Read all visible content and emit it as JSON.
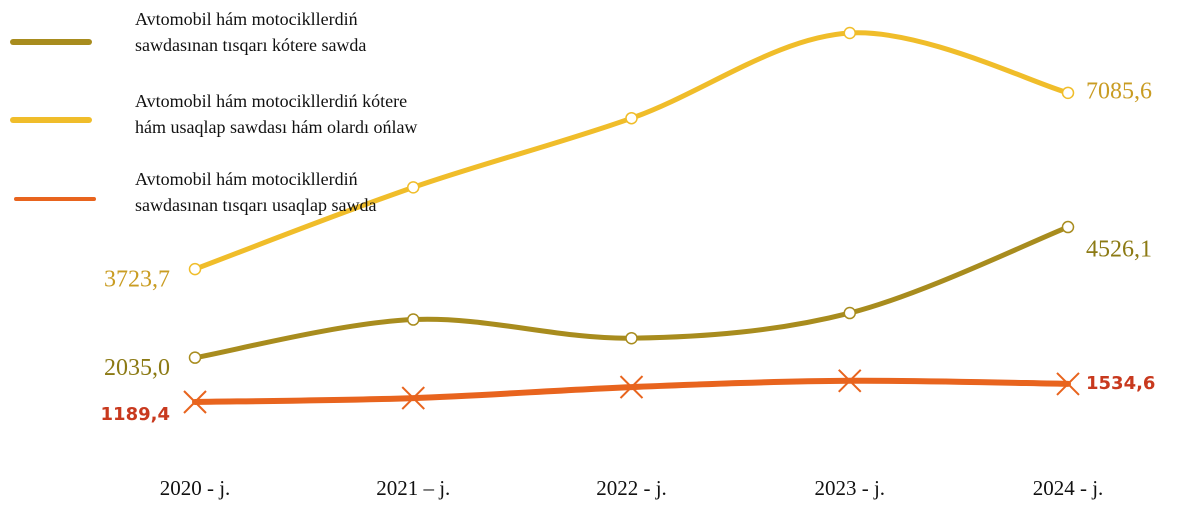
{
  "chart_data": {
    "type": "line",
    "categories": [
      "2020 - j.",
      "2021 – j.",
      "2022 - j.",
      "2023 - j.",
      "2024 - j."
    ],
    "series": [
      {
        "name": "Avtomobil hám motocikllerdiń sawdasınan tısqarı kótere sawda",
        "color": "#a88c1e",
        "marker": "circle",
        "values": [
          2035.0,
          2762,
          2406,
          2886,
          4526.1
        ],
        "value_labels": [
          "2035,0",
          null,
          null,
          null,
          "4526,1"
        ]
      },
      {
        "name": "Avtomobil hám motocikllerdiń kótere hám usaqlap sawdası hám olardı ońlaw",
        "color": "#f0bd2a",
        "marker": "circle",
        "values": [
          3723.7,
          5283,
          6602,
          8227,
          7085.6
        ],
        "value_labels": [
          "3723,7",
          null,
          null,
          null,
          "7085,6"
        ]
      },
      {
        "name": "Avtomobil hám motocikllerdiń sawdasınan tısqarı usaqlap sawda",
        "color": "#e8641e",
        "marker": "x",
        "values": [
          1189.4,
          1264,
          1474,
          1594,
          1534.6
        ],
        "value_labels": [
          "1189,4",
          null,
          null,
          null,
          "1534,6"
        ]
      }
    ]
  }
}
